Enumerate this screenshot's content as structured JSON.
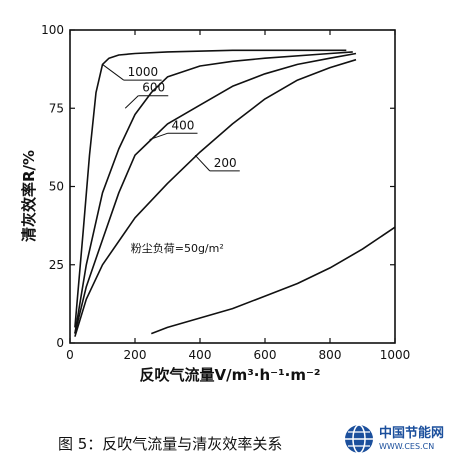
{
  "chart_data": {
    "type": "line",
    "title": "",
    "xlabel": "反吹气流量V/m³·h⁻¹·m⁻²",
    "ylabel": "清灰效率R/%",
    "xlim": [
      0,
      1000
    ],
    "ylim": [
      0,
      100
    ],
    "xticks": [
      "0",
      "200",
      "400",
      "600",
      "800",
      "1000"
    ],
    "yticks": [
      "0",
      "25",
      "50",
      "75",
      "100"
    ],
    "grid": false,
    "series": [
      {
        "name": "1000",
        "x": [
          15,
          40,
          60,
          80,
          100,
          120,
          150,
          200,
          300,
          500,
          700,
          850
        ],
        "y": [
          5,
          35,
          60,
          80,
          89,
          91,
          92,
          92.5,
          93,
          93.5,
          93.5,
          93.5
        ]
      },
      {
        "name": "600",
        "x": [
          15,
          50,
          100,
          150,
          200,
          250,
          300,
          400,
          500,
          600,
          800,
          870
        ],
        "y": [
          3,
          25,
          48,
          62,
          73,
          80,
          85,
          88.5,
          90,
          91,
          92.5,
          93
        ]
      },
      {
        "name": "400",
        "x": [
          15,
          50,
          100,
          150,
          200,
          250,
          300,
          400,
          500,
          600,
          700,
          800,
          880
        ],
        "y": [
          3,
          18,
          33,
          48,
          60,
          65,
          70,
          76,
          82,
          86,
          89,
          91,
          92.5
        ]
      },
      {
        "name": "200",
        "x": [
          15,
          50,
          100,
          200,
          300,
          400,
          500,
          600,
          700,
          800,
          880
        ],
        "y": [
          2,
          14,
          25,
          40,
          51,
          61,
          70,
          78,
          84,
          88,
          90.5
        ]
      },
      {
        "name": "粉尘负荷=50g/m²",
        "x": [
          250,
          300,
          400,
          500,
          600,
          700,
          800,
          900,
          1000
        ],
        "y": [
          3,
          5,
          8,
          11,
          15,
          19,
          24,
          30,
          37
        ]
      }
    ]
  },
  "caption": "图 5：反吹气流量与清灰效率关系",
  "watermark": {
    "name": "中国节能网",
    "url": "WWW.CES.CN"
  },
  "colors": {
    "line": "#111111",
    "watermark": "#1b4f9c"
  }
}
